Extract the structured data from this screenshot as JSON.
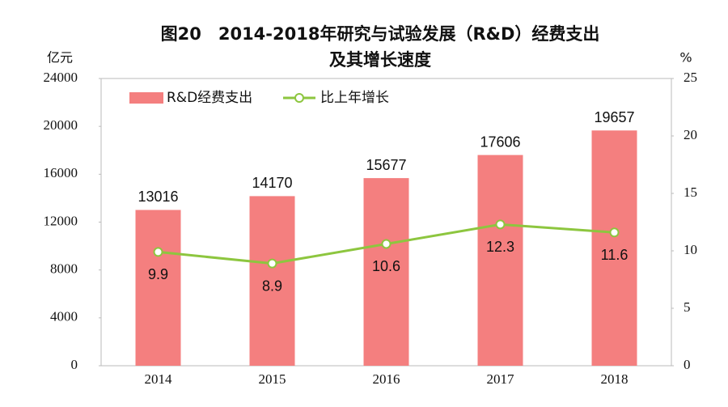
{
  "chart_data": {
    "type": "bar",
    "title": [
      "图20　2014-2018年研究与试验发展（R&D）经费支出",
      "及其增长速度"
    ],
    "y_label": "亿元",
    "y2_label": "%",
    "categories": [
      "2014",
      "2015",
      "2016",
      "2017",
      "2018"
    ],
    "series": [
      {
        "name": "R&D经费支出",
        "type": "bar",
        "color": "#f47f7f",
        "values": [
          13016,
          14170,
          15677,
          17606,
          19657
        ]
      },
      {
        "name": "比上年增长",
        "type": "line",
        "axis": "y2",
        "color": "#8dc63f",
        "values": [
          9.9,
          8.9,
          10.6,
          12.3,
          11.6
        ]
      }
    ],
    "ylim": [
      0,
      24000
    ],
    "yticks": [
      0,
      4000,
      8000,
      12000,
      16000,
      20000,
      24000
    ],
    "y2lim": [
      0,
      25
    ],
    "y2ticks": [
      0,
      5,
      10,
      15,
      20,
      25
    ],
    "legend": "top-left"
  }
}
